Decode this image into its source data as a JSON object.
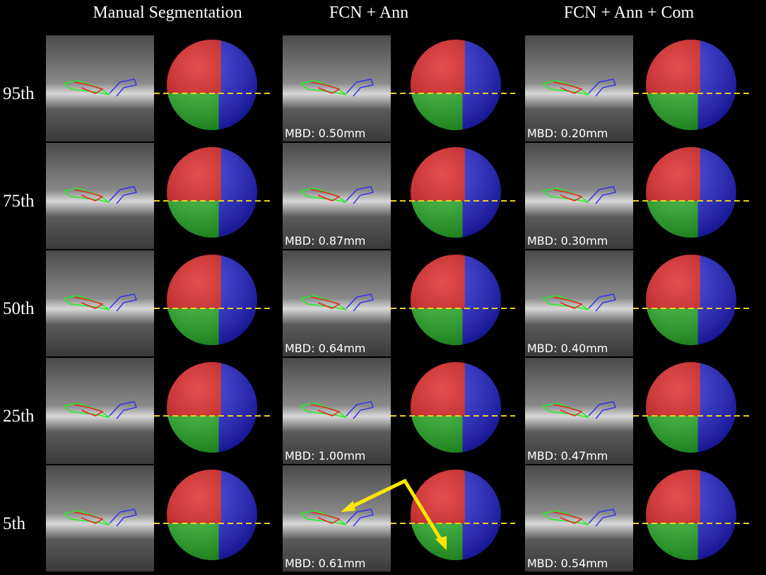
{
  "header": {
    "columns": [
      "Manual Segmentation",
      "FCN + Ann",
      "FCN + Ann + Com"
    ]
  },
  "rows": [
    {
      "label": "95th",
      "fcn_ann": "MBD: 0.50mm",
      "fcn_ann_com": "MBD: 0.20mm"
    },
    {
      "label": "75th",
      "fcn_ann": "MBD: 0.87mm",
      "fcn_ann_com": "MBD: 0.30mm"
    },
    {
      "label": "50th",
      "fcn_ann": "MBD: 0.64mm",
      "fcn_ann_com": "MBD: 0.40mm"
    },
    {
      "label": "25th",
      "fcn_ann": "MBD: 1.00mm",
      "fcn_ann_com": "MBD: 0.47mm"
    },
    {
      "label": "5th",
      "fcn_ann": "MBD: 0.61mm",
      "fcn_ann_com": "MBD: 0.54mm"
    }
  ]
}
